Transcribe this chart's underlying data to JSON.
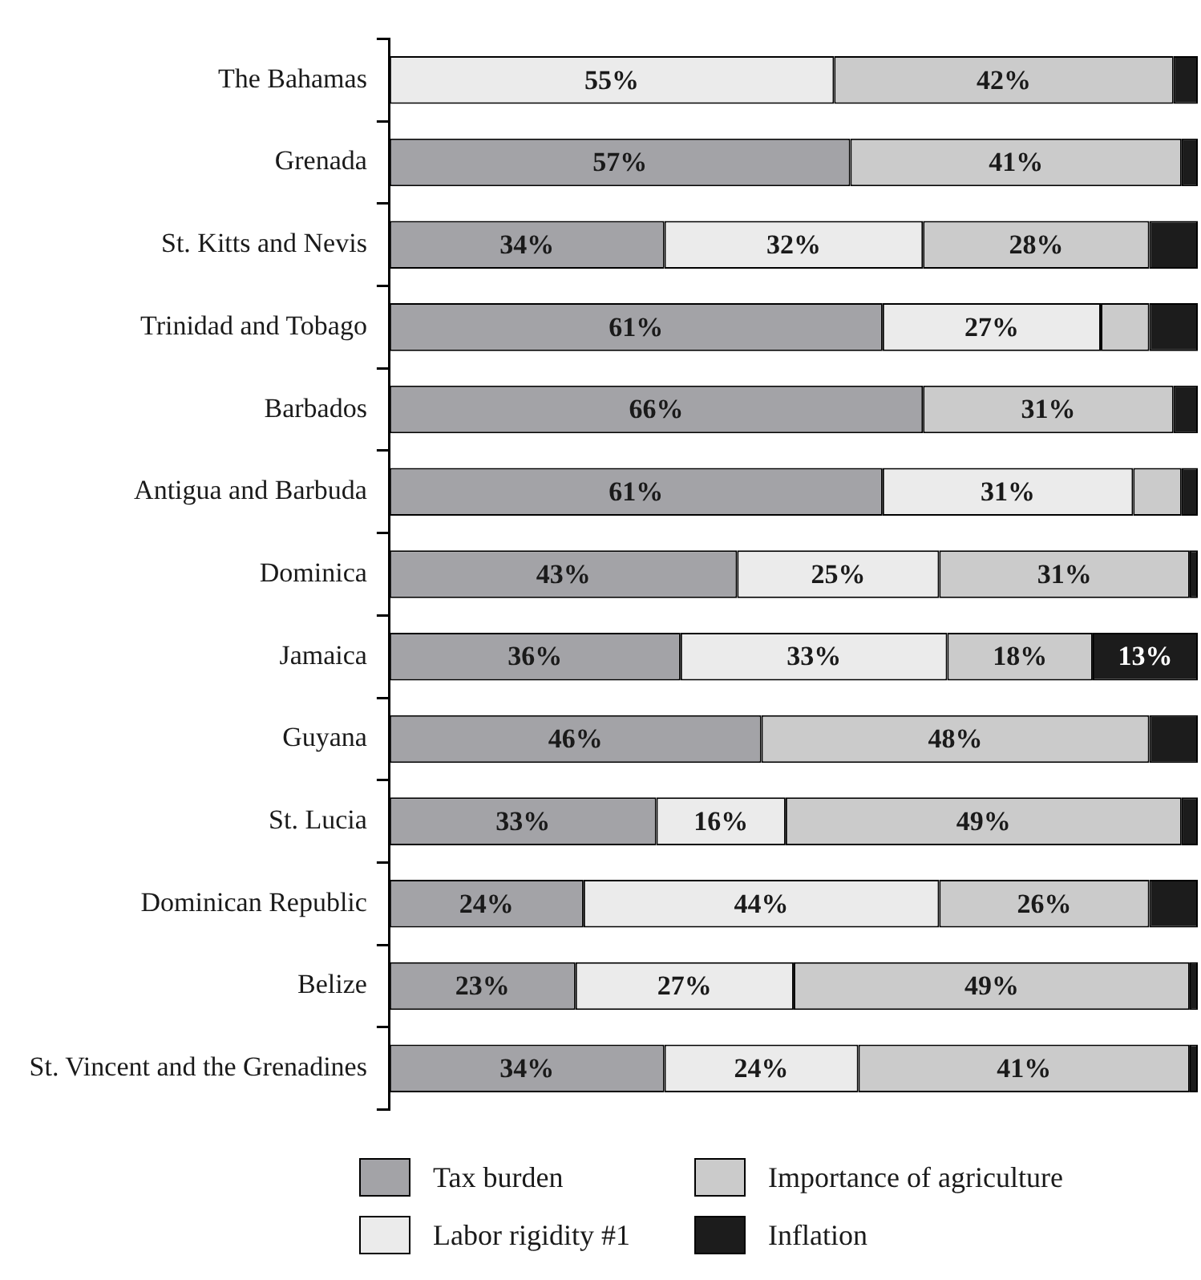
{
  "chart_data": {
    "type": "bar",
    "orientation": "horizontal",
    "stacked": true,
    "legend": "bottom",
    "grid": false,
    "tick_labels": "y",
    "xlim": [
      0,
      100
    ],
    "categories": [
      "The Bahamas",
      "Grenada",
      "St. Kitts and Nevis",
      "Trinidad and Tobago",
      "Barbados",
      "Antigua and Barbuda",
      "Dominica",
      "Jamaica",
      "Guyana",
      "St. Lucia",
      "Dominican Republic",
      "Belize",
      "St. Vincent and the Grenadines"
    ],
    "series": [
      {
        "name": "Tax burden",
        "color": "#a3a3a7",
        "values": [
          0,
          57,
          34,
          61,
          66,
          61,
          43,
          36,
          46,
          33,
          24,
          23,
          34
        ],
        "value_labels": [
          null,
          "57%",
          "34%",
          "61%",
          "66%",
          "61%",
          "43%",
          "36%",
          "46%",
          "33%",
          "24%",
          "23%",
          "34%"
        ]
      },
      {
        "name": "Labor rigidity #1",
        "color": "#ebebeb",
        "values": [
          55,
          0,
          32,
          27,
          0,
          31,
          25,
          33,
          0,
          16,
          44,
          27,
          24
        ],
        "value_labels": [
          "55%",
          null,
          "32%",
          "27%",
          null,
          "31%",
          "25%",
          "33%",
          null,
          "16%",
          "44%",
          "27%",
          "24%"
        ]
      },
      {
        "name": "Importance of agriculture",
        "color": "#cbcbcb",
        "values": [
          42,
          41,
          28,
          6,
          31,
          6,
          31,
          18,
          48,
          49,
          26,
          49,
          41
        ],
        "value_labels": [
          "42%",
          "41%",
          "28%",
          null,
          "31%",
          null,
          "31%",
          "18%",
          "48%",
          "49%",
          "26%",
          "49%",
          "41%"
        ]
      },
      {
        "name": "Inflation",
        "color": "#1c1c1c",
        "values": [
          3,
          2,
          6,
          6,
          3,
          2,
          1,
          13,
          6,
          2,
          6,
          1,
          1
        ],
        "value_labels": [
          null,
          null,
          null,
          null,
          null,
          null,
          null,
          "13%",
          null,
          null,
          null,
          null,
          null
        ]
      }
    ]
  }
}
